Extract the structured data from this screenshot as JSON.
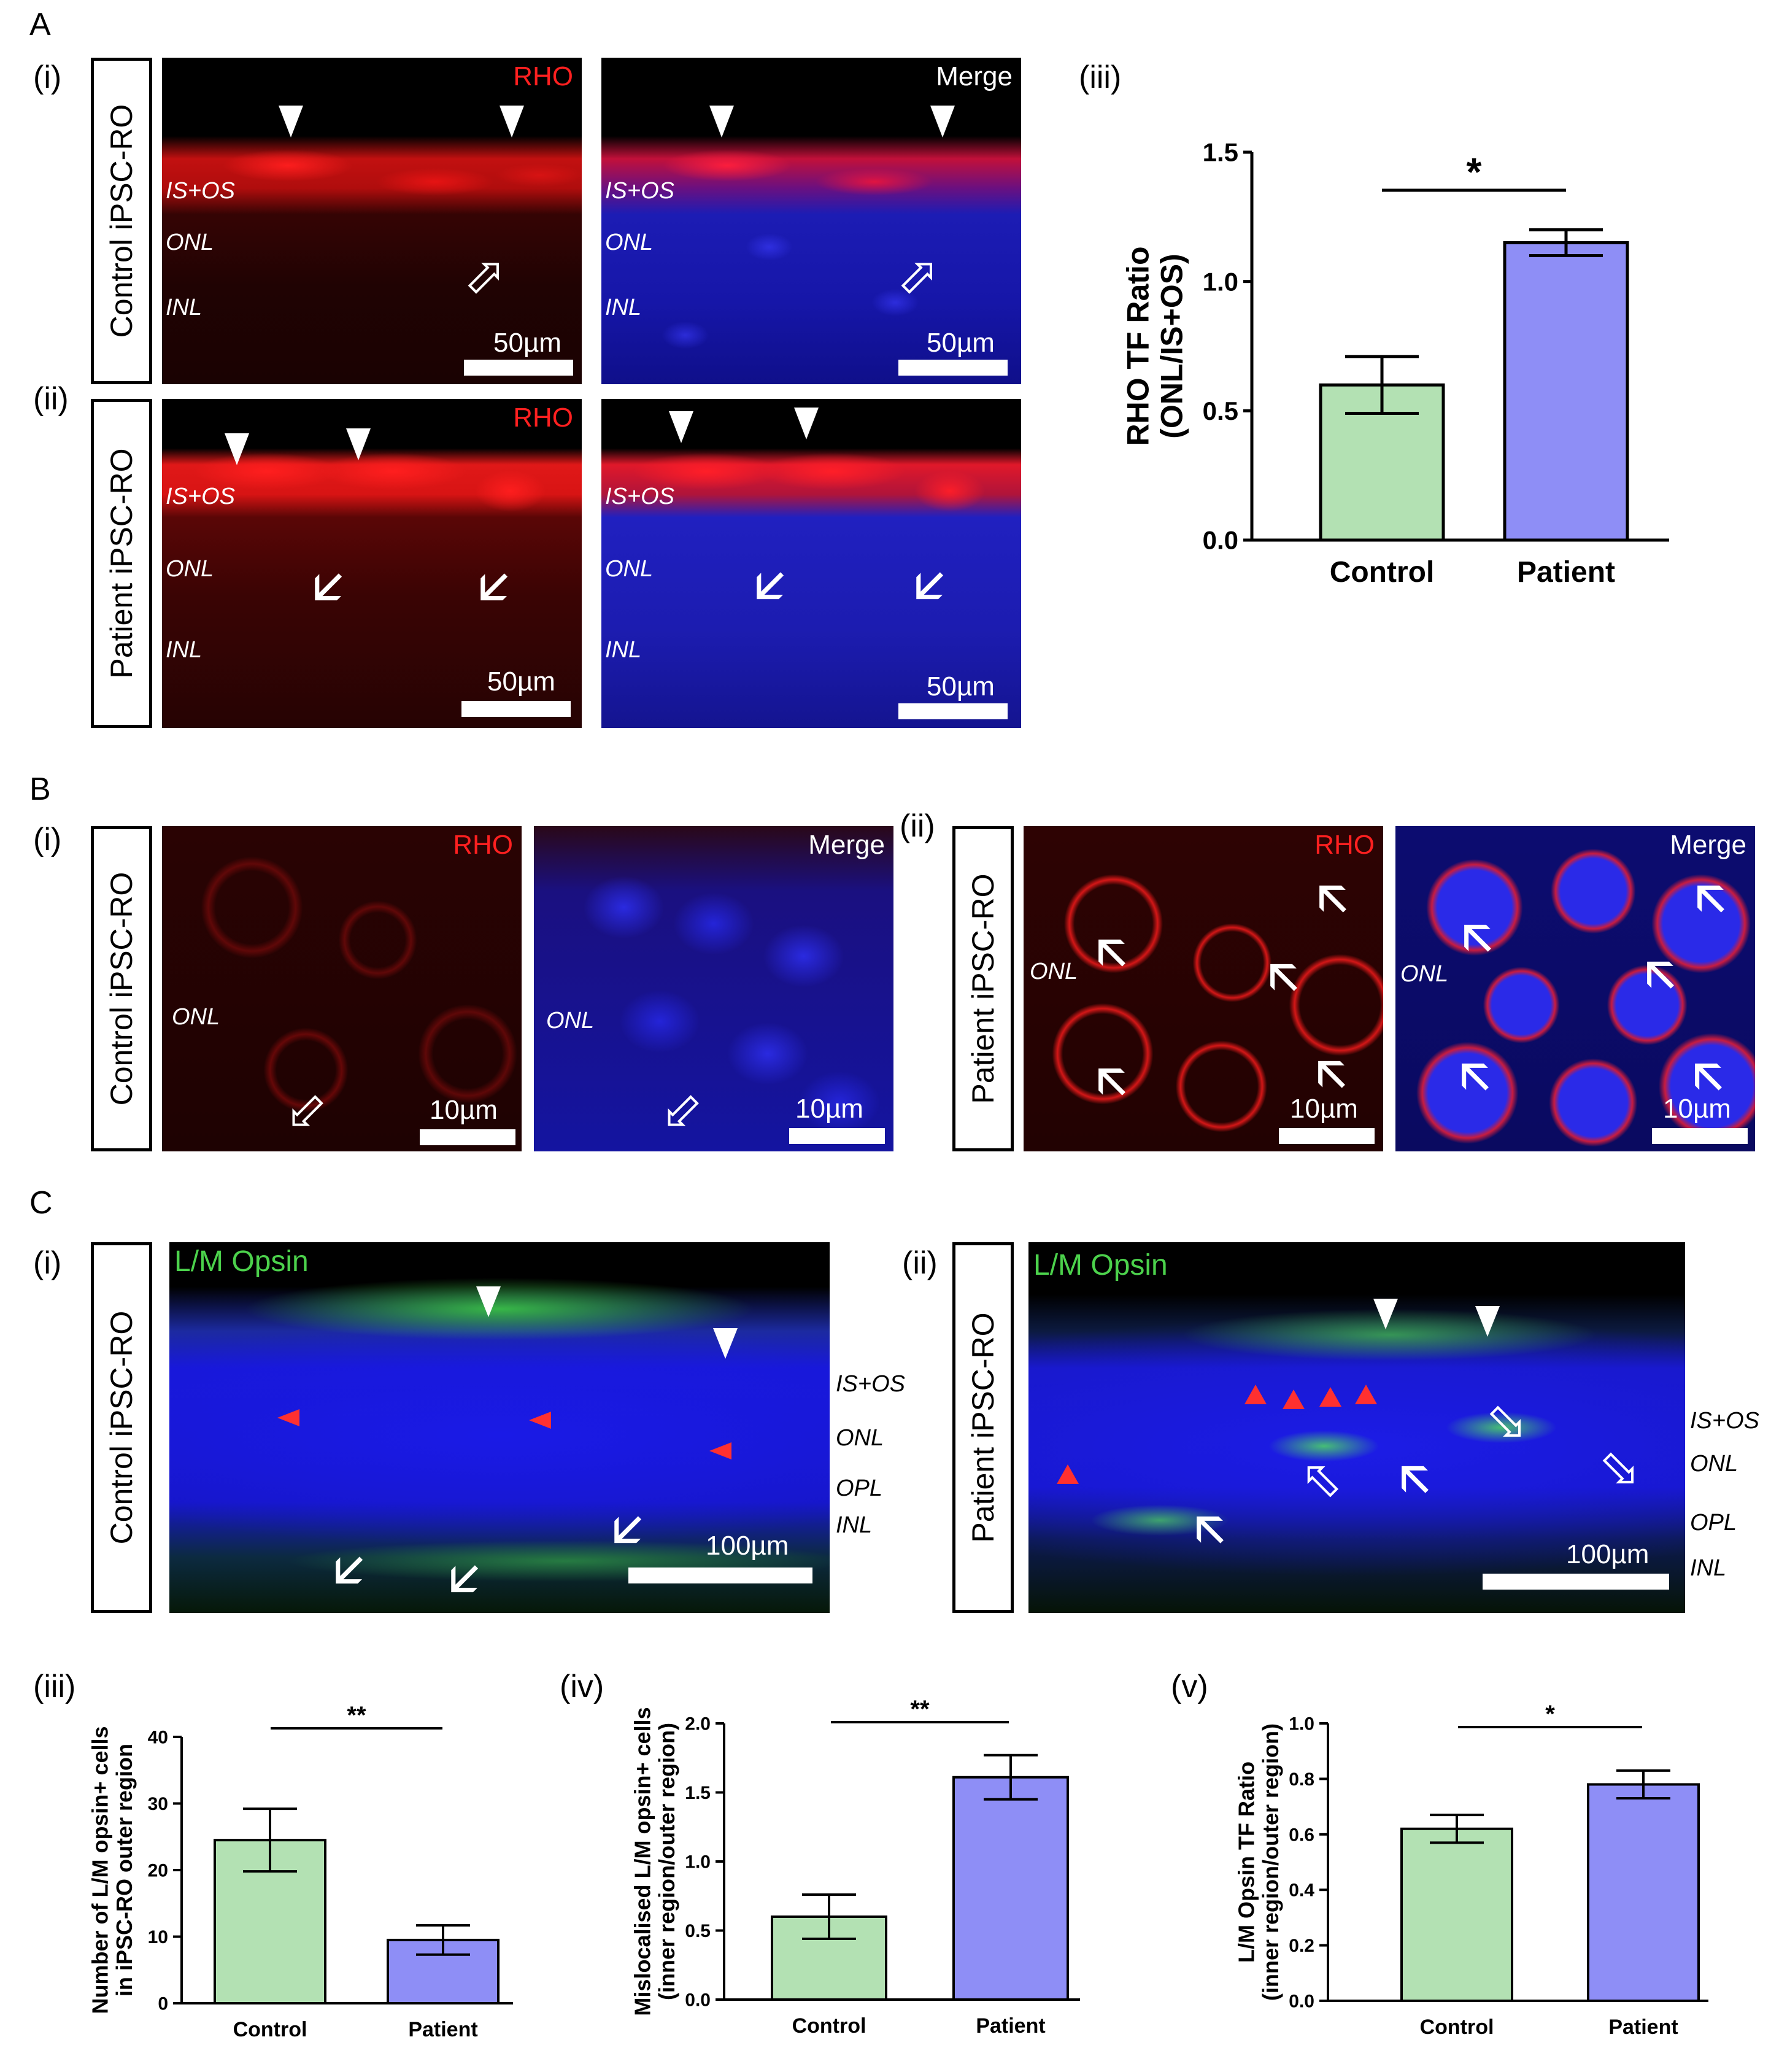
{
  "panels": {
    "A": {
      "letter": "A",
      "sub_i": "(i)",
      "sub_ii": "(ii)",
      "sub_iii": "(iii)",
      "row_i": "Control iPSC-RO",
      "row_ii": "Patient iPSC-RO",
      "chan_rho": "RHO",
      "chan_merge": "Merge",
      "layer_isos": "IS+OS",
      "layer_onl": "ONL",
      "layer_inl": "INL",
      "scale": "50µm"
    },
    "B": {
      "letter": "B",
      "sub_i": "(i)",
      "sub_ii": "(ii)",
      "row_i": "Control iPSC-RO",
      "row_ii": "Patient iPSC-RO",
      "chan_rho": "RHO",
      "chan_merge": "Merge",
      "layer_onl": "ONL",
      "scale": "10µm"
    },
    "C": {
      "letter": "C",
      "sub_i": "(i)",
      "sub_ii": "(ii)",
      "sub_iii": "(iii)",
      "sub_iv": "(iv)",
      "sub_v": "(v)",
      "row_i": "Control iPSC-RO",
      "row_ii": "Patient iPSC-RO",
      "chan_lm": "L/M Opsin",
      "layer_isos": "IS+OS",
      "layer_onl": "ONL",
      "layer_opl": "OPL",
      "layer_inl": "INL",
      "scale": "100µm"
    }
  },
  "colors": {
    "control_fill": "#b3e1b3",
    "patient_fill": "#8e8ef6",
    "rho_red": "#ff2020",
    "dapi_blue": "#1a1ae0",
    "opsin_green": "#46d24a"
  },
  "chart_data": [
    {
      "id": "A-iii",
      "type": "bar",
      "categories": [
        "Control",
        "Patient"
      ],
      "values": [
        0.6,
        1.15
      ],
      "errors": [
        0.11,
        0.05
      ],
      "ylabel_line1": "RHO TF Ratio",
      "ylabel_line2": "(ONL/IS+OS)",
      "ylim": [
        0,
        1.5
      ],
      "yticks": [
        "0.0",
        "0.5",
        "1.0",
        "1.5"
      ],
      "significance": "*"
    },
    {
      "id": "C-iii",
      "type": "bar",
      "categories": [
        "Control",
        "Patient"
      ],
      "values": [
        24.5,
        9.5
      ],
      "errors": [
        4.7,
        2.2
      ],
      "ylabel_line1": "Number of L/M opsin+ cells",
      "ylabel_line2": "in iPSC-RO outer region",
      "ylim": [
        0,
        40
      ],
      "yticks": [
        "0",
        "10",
        "20",
        "30",
        "40"
      ],
      "significance": "**"
    },
    {
      "id": "C-iv",
      "type": "bar",
      "categories": [
        "Control",
        "Patient"
      ],
      "values": [
        0.6,
        1.61
      ],
      "errors": [
        0.16,
        0.16
      ],
      "ylabel_line1": "Mislocalised L/M opsin+ cells",
      "ylabel_line2": "(inner region/outer region)",
      "ylim": [
        0,
        2.0
      ],
      "yticks": [
        "0.0",
        "0.5",
        "1.0",
        "1.5",
        "2.0"
      ],
      "significance": "**"
    },
    {
      "id": "C-v",
      "type": "bar",
      "categories": [
        "Control",
        "Patient"
      ],
      "values": [
        0.62,
        0.78
      ],
      "errors": [
        0.05,
        0.05
      ],
      "ylabel_line1": "L/M Opsin TF Ratio",
      "ylabel_line2": "(inner region/outer region)",
      "ylim": [
        0,
        1.0
      ],
      "yticks": [
        "0.0",
        "0.2",
        "0.4",
        "0.6",
        "0.8",
        "1.0"
      ],
      "significance": "*"
    }
  ]
}
